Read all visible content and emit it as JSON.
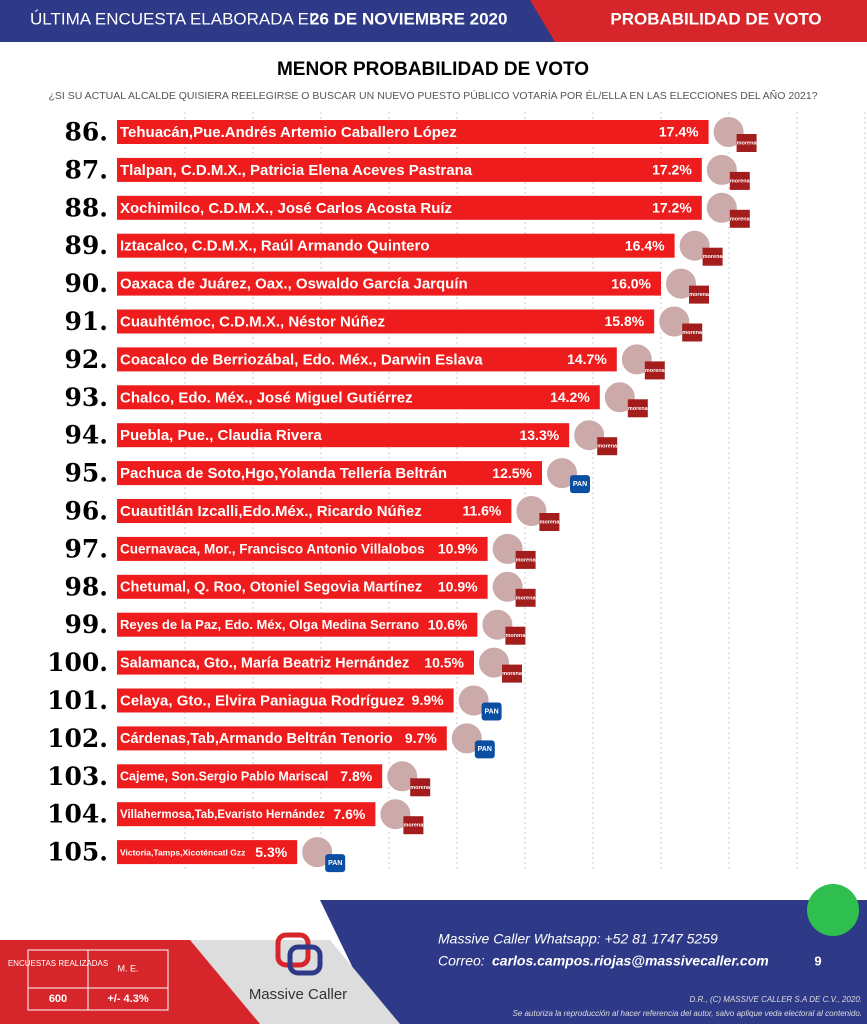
{
  "header": {
    "lead": "ÚLTIMA ENCUESTA ELABORADA EL",
    "date": "26 DE NOVIEMBRE 2020",
    "section": "PROBABILIDAD DE VOTO"
  },
  "chart_data": {
    "type": "bar",
    "orientation": "horizontal",
    "title": "MENOR PROBABILIDAD DE VOTO",
    "subtitle": "¿SI SU ACTUAL ALCALDE QUISIERA REELEGIRSE O BUSCAR UN NUEVO PUESTO PÚBLICO VOTARÍA POR ÉL/ELLA EN LAS ELECCIONES DEL AÑO 2021?",
    "ranks": [
      "86.",
      "87.",
      "88.",
      "89.",
      "90.",
      "91.",
      "92.",
      "93.",
      "94.",
      "95.",
      "96.",
      "97.",
      "98.",
      "99.",
      "100.",
      "101.",
      "102.",
      "103.",
      "104.",
      "105."
    ],
    "categories": [
      "Tehuacán,Pue.Andrés Artemio Caballero López",
      "Tlalpan, C.D.M.X., Patricia Elena Aceves Pastrana",
      "Xochimilco, C.D.M.X., José Carlos Acosta Ruíz",
      "Iztacalco, C.D.M.X., Raúl Armando Quintero",
      "Oaxaca de Juárez, Oax., Oswaldo García Jarquín",
      "Cuauhtémoc, C.D.M.X., Néstor Núñez",
      "Coacalco de Berriozábal, Edo. Méx., Darwin Eslava",
      "Chalco, Edo. Méx., José Miguel Gutiérrez",
      "Puebla, Pue., Claudia Rivera",
      "Pachuca de Soto,Hgo,Yolanda Tellería Beltrán",
      "Cuautitlán Izcalli,Edo.Méx., Ricardo Núñez",
      "Cuernavaca, Mor., Francisco Antonio Villalobos",
      "Chetumal, Q. Roo, Otoniel Segovia Martínez",
      "Reyes de la Paz, Edo. Méx, Olga Medina Serrano",
      "Salamanca, Gto., María Beatriz Hernández",
      "Celaya, Gto., Elvira Paniagua Rodríguez",
      "Cárdenas,Tab,Armando Beltrán Tenorio",
      "Cajeme, Son.Sergio Pablo Mariscal",
      "Villahermosa,Tab,Evaristo Hernández",
      "Victoria,Tamps,Xicoténcatl Gzz"
    ],
    "values": [
      17.4,
      17.2,
      17.2,
      16.4,
      16.0,
      15.8,
      14.7,
      14.2,
      13.3,
      12.5,
      11.6,
      10.9,
      10.9,
      10.6,
      10.5,
      9.9,
      9.7,
      7.8,
      7.6,
      5.3
    ],
    "value_labels": [
      "17.4%",
      "17.2%",
      "17.2%",
      "16.4%",
      "16.0%",
      "15.8%",
      "14.7%",
      "14.2%",
      "13.3%",
      "12.5%",
      "11.6%",
      "10.9%",
      "10.9%",
      "10.6%",
      "10.5%",
      "9.9%",
      "9.7%",
      "7.8%",
      "7.6%",
      "5.3%"
    ],
    "parties": [
      "morena",
      "morena",
      "morena",
      "morena",
      "morena",
      "morena",
      "morena",
      "morena",
      "morena",
      "PAN",
      "morena",
      "morena",
      "morena",
      "morena",
      "morena",
      "PAN",
      "PAN",
      "morena",
      "morena",
      "PAN"
    ],
    "color": "#ee1c1c",
    "xlim": [
      0,
      22
    ],
    "grid": true
  },
  "footer": {
    "surveys_label": "ENCUESTAS REALIZADAS",
    "margin_label": "M. E.",
    "surveys": "600",
    "margin": "+/- 4.3%",
    "brand": "Massive Caller",
    "whatsapp": "Massive Caller Whatsapp: +52   81 1747 5259",
    "email_label": "Correo:",
    "email": "carlos.campos.riojas@massivecaller.com",
    "page": "9",
    "copyright": "D.R., (C) MASSIVE CALLER S.A DE C.V., 2020.",
    "notice": "Se autoriza la reproducción al hacer referencia del autor, salvo aplique veda electoral al contenido."
  }
}
